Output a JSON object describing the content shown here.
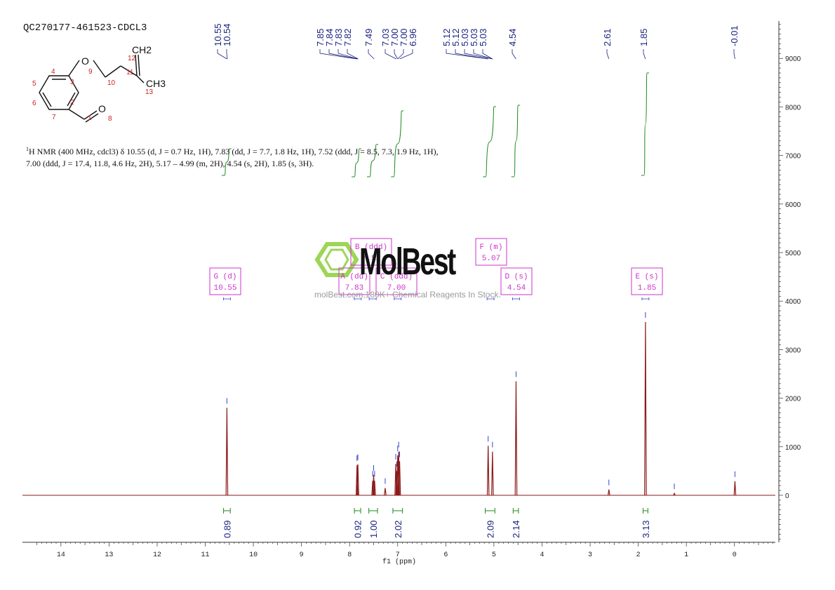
{
  "sample_id": "QC270177-461523-CDCL3",
  "description": {
    "nucleus_sup": "1",
    "text": "H NMR (400 MHz, cdcl3) δ 10.55 (d, J = 0.7 Hz, 1H), 7.83 (dd, J = 7.7, 1.8 Hz, 1H), 7.52 (ddd, J = 8.5, 7.3, 1.9 Hz, 1H), 7.00 (ddd, J = 17.4, 11.8, 4.6 Hz, 2H), 5.17 – 4.99 (m, 2H), 4.54 (s, 2H), 1.85 (s, 3H)."
  },
  "structure": {
    "atoms": [
      "O",
      "O",
      "CH2",
      "CH3"
    ],
    "numbers": [
      "1",
      "2",
      "3",
      "4",
      "5",
      "6",
      "7",
      "8",
      "9",
      "10",
      "11",
      "12",
      "13"
    ]
  },
  "watermark": {
    "logo": "MolBest",
    "text": "molBest.com,180K+ Chemical Reagents In Stock."
  },
  "colors": {
    "spectrum": "#8b1a1a",
    "integral": "#1e8a1e",
    "peak_label": "#1a237e",
    "multiplet_box": "#cc33cc",
    "axis": "#333333"
  },
  "chart_data": {
    "type": "line",
    "xlabel": "f1 (ppm)",
    "x_reversed": true,
    "xlim": [
      14.8,
      -0.85
    ],
    "ylim": [
      -950,
      9800
    ],
    "x_ticks": [
      "14",
      "13",
      "12",
      "11",
      "10",
      "9",
      "8",
      "7",
      "6",
      "5",
      "4",
      "3",
      "2",
      "1",
      "0"
    ],
    "y_ticks": [
      "9000",
      "8000",
      "7000",
      "6000",
      "5000",
      "4000",
      "3000",
      "2000",
      "1000",
      "0"
    ],
    "peaks": [
      {
        "ppm": 10.55,
        "height": 1800
      },
      {
        "ppm": 7.846,
        "height": 620
      },
      {
        "ppm": 7.828,
        "height": 640
      },
      {
        "ppm": 7.52,
        "height": 300
      },
      {
        "ppm": 7.5,
        "height": 420
      },
      {
        "ppm": 7.48,
        "height": 300
      },
      {
        "ppm": 7.26,
        "height": 150
      },
      {
        "ppm": 7.04,
        "height": 650
      },
      {
        "ppm": 7.02,
        "height": 500
      },
      {
        "ppm": 7.0,
        "height": 820
      },
      {
        "ppm": 6.98,
        "height": 900
      },
      {
        "ppm": 6.96,
        "height": 700
      },
      {
        "ppm": 5.12,
        "height": 1020
      },
      {
        "ppm": 5.03,
        "height": 900
      },
      {
        "ppm": 4.54,
        "height": 2350
      },
      {
        "ppm": 2.61,
        "height": 120
      },
      {
        "ppm": 1.85,
        "height": 3570
      },
      {
        "ppm": 1.25,
        "height": 40
      },
      {
        "ppm": -0.01,
        "height": 290
      }
    ],
    "peak_labels": [
      {
        "group": [
          10.55,
          10.54
        ],
        "labels": [
          "10.55",
          "10.54"
        ]
      },
      {
        "group": [
          7.85,
          7.84,
          7.83,
          7.82
        ],
        "labels": [
          "7.85",
          "7.84",
          "7.83",
          "7.82"
        ]
      },
      {
        "group": [
          7.49
        ],
        "labels": [
          "7.49"
        ]
      },
      {
        "group": [
          7.03,
          7.0,
          7.0,
          6.96
        ],
        "labels": [
          "7.03",
          "7.00",
          "7.00",
          "6.96"
        ]
      },
      {
        "group": [
          5.12,
          5.12,
          5.03,
          5.03,
          5.03
        ],
        "labels": [
          "5.12",
          "5.12",
          "5.03",
          "5.03",
          "5.03"
        ]
      },
      {
        "group": [
          4.54
        ],
        "labels": [
          "4.54"
        ]
      },
      {
        "group": [
          2.61
        ],
        "labels": [
          "2.61"
        ]
      },
      {
        "group": [
          1.85
        ],
        "labels": [
          "1.85"
        ]
      },
      {
        "group": [
          -0.01
        ],
        "labels": [
          "-0.01"
        ]
      }
    ],
    "integrals": [
      {
        "from": 10.62,
        "to": 10.48,
        "value": "0.89"
      },
      {
        "from": 7.9,
        "to": 7.77,
        "value": "0.92"
      },
      {
        "from": 7.6,
        "to": 7.42,
        "value": "1.00"
      },
      {
        "from": 7.1,
        "to": 6.9,
        "value": "2.02"
      },
      {
        "from": 5.18,
        "to": 4.98,
        "value": "2.09"
      },
      {
        "from": 4.6,
        "to": 4.49,
        "value": "2.14"
      },
      {
        "from": 1.9,
        "to": 1.8,
        "value": "3.13"
      }
    ],
    "multiplets": [
      {
        "name": "A (dd)",
        "shift": "7.83",
        "ppm": 7.83
      },
      {
        "name": "B (ddd)",
        "shift": "7.52",
        "ppm": 7.52
      },
      {
        "name": "C (ddd)",
        "shift": "7.00",
        "ppm": 7.0
      },
      {
        "name": "D (s)",
        "shift": "4.54",
        "ppm": 4.54
      },
      {
        "name": "E (s)",
        "shift": "1.85",
        "ppm": 1.85
      },
      {
        "name": "F (m)",
        "shift": "5.07",
        "ppm": 5.07
      },
      {
        "name": "G (d)",
        "shift": "10.55",
        "ppm": 10.55
      }
    ]
  }
}
